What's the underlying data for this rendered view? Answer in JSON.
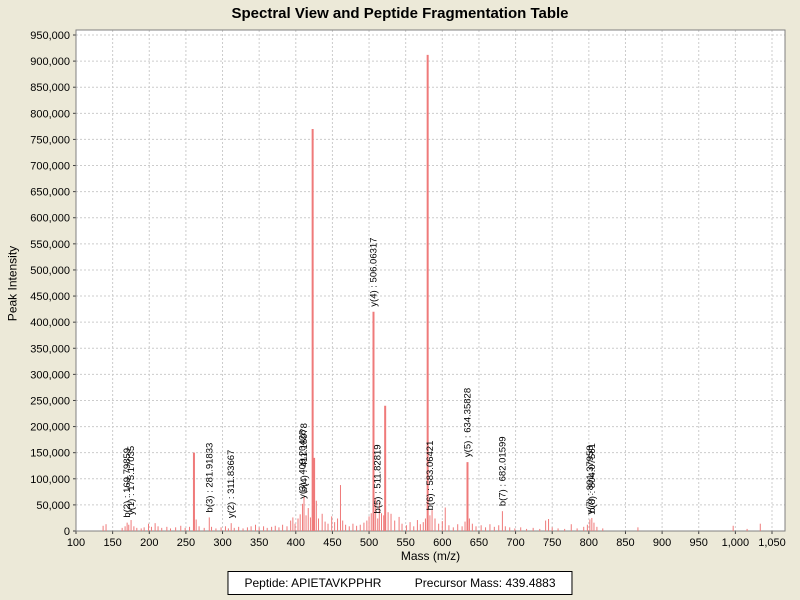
{
  "title": "Spectral View and Peptide Fragmentation Table",
  "status": {
    "peptide_text": "Peptide: APIETAVKPPHR",
    "precursor_text": "Precursor Mass: 439.4883"
  },
  "chart_data": {
    "type": "bar",
    "title": "Spectral View and Peptide Fragmentation Table",
    "xlabel": "Mass (m/z)",
    "ylabel": "Peak Intensity",
    "xlim": [
      100,
      1068
    ],
    "ylim": [
      0,
      960000
    ],
    "grid": true,
    "legend": false,
    "xticks": [
      100,
      150,
      200,
      250,
      300,
      350,
      400,
      450,
      500,
      550,
      600,
      650,
      700,
      750,
      800,
      850,
      900,
      950,
      1000,
      1050
    ],
    "yticks": [
      0,
      50000,
      100000,
      150000,
      200000,
      250000,
      300000,
      350000,
      400000,
      450000,
      500000,
      550000,
      600000,
      650000,
      700000,
      750000,
      800000,
      850000,
      900000,
      950000
    ],
    "colors": {
      "window_background": "#ece9d8",
      "plot_background": "#ffffff",
      "grid": "#cccccc",
      "border": "#808080",
      "peak": "#ef7a7a",
      "tick": "#404040",
      "label_text": "#000000"
    },
    "labeled_peaks": [
      {
        "label": "b(2) : 169.79859",
        "mz": 169.8,
        "intensity": 16000
      },
      {
        "label": "y(1) : 175.17035",
        "mz": 175.17,
        "intensity": 21000
      },
      {
        "label": "b(3) : 281.91833",
        "mz": 281.92,
        "intensity": 26000
      },
      {
        "label": "y(2) : 311.83667",
        "mz": 311.84,
        "intensity": 15000
      },
      {
        "label": "y(3) : 409.20428",
        "mz": 409.2,
        "intensity": 52000
      },
      {
        "label": "b(4) : 411.18978",
        "mz": 411.19,
        "intensity": 65000
      },
      {
        "label": "y(4) : 506.06317",
        "mz": 506.06,
        "intensity": 420000
      },
      {
        "label": "b(5) : 511.82819",
        "mz": 511.83,
        "intensity": 24000
      },
      {
        "label": "b(6) : 583.06421",
        "mz": 583.06,
        "intensity": 30000
      },
      {
        "label": "y(5) : 634.35828",
        "mz": 634.36,
        "intensity": 132000
      },
      {
        "label": "b(7) : 682.01599",
        "mz": 682.02,
        "intensity": 38000
      },
      {
        "label": "y(7) : 801.37958",
        "mz": 801.38,
        "intensity": 22000
      },
      {
        "label": "b(8) : 804.07561",
        "mz": 804.08,
        "intensity": 25000
      }
    ],
    "peaks": [
      [
        137,
        10000
      ],
      [
        141,
        13000
      ],
      [
        163,
        6000
      ],
      [
        167,
        9000
      ],
      [
        172,
        12000
      ],
      [
        179,
        9000
      ],
      [
        183,
        6000
      ],
      [
        189,
        5000
      ],
      [
        193,
        7000
      ],
      [
        199,
        14000
      ],
      [
        203,
        8000
      ],
      [
        208,
        15000
      ],
      [
        212,
        9000
      ],
      [
        217,
        6000
      ],
      [
        224,
        8000
      ],
      [
        229,
        5000
      ],
      [
        236,
        7000
      ],
      [
        243,
        10000
      ],
      [
        249,
        6000
      ],
      [
        255,
        8000
      ],
      [
        261,
        150000
      ],
      [
        264,
        22000
      ],
      [
        268,
        9000
      ],
      [
        275,
        6000
      ],
      [
        285,
        8000
      ],
      [
        291,
        5000
      ],
      [
        298,
        7000
      ],
      [
        304,
        9000
      ],
      [
        308,
        5000
      ],
      [
        316,
        6000
      ],
      [
        322,
        8000
      ],
      [
        328,
        5000
      ],
      [
        334,
        7000
      ],
      [
        339,
        9000
      ],
      [
        345,
        12000
      ],
      [
        350,
        7000
      ],
      [
        356,
        9000
      ],
      [
        361,
        6000
      ],
      [
        367,
        8000
      ],
      [
        372,
        10000
      ],
      [
        377,
        7000
      ],
      [
        382,
        12000
      ],
      [
        388,
        9000
      ],
      [
        393,
        20000
      ],
      [
        396,
        26000
      ],
      [
        399,
        14000
      ],
      [
        403,
        24000
      ],
      [
        406,
        32000
      ],
      [
        414,
        30000
      ],
      [
        417,
        44000
      ],
      [
        420,
        26000
      ],
      [
        423,
        770000
      ],
      [
        425,
        140000
      ],
      [
        428,
        58000
      ],
      [
        431,
        24000
      ],
      [
        436,
        33000
      ],
      [
        440,
        18000
      ],
      [
        444,
        14000
      ],
      [
        449,
        28000
      ],
      [
        453,
        17000
      ],
      [
        457,
        24000
      ],
      [
        461,
        88000
      ],
      [
        464,
        20000
      ],
      [
        468,
        12000
      ],
      [
        473,
        9000
      ],
      [
        478,
        14000
      ],
      [
        483,
        10000
      ],
      [
        488,
        12000
      ],
      [
        493,
        16000
      ],
      [
        497,
        20000
      ],
      [
        500,
        28000
      ],
      [
        503,
        34000
      ],
      [
        509,
        62000
      ],
      [
        514,
        55000
      ],
      [
        517,
        34000
      ],
      [
        520,
        30000
      ],
      [
        522,
        240000
      ],
      [
        526,
        36000
      ],
      [
        530,
        33000
      ],
      [
        535,
        20000
      ],
      [
        541,
        27000
      ],
      [
        545,
        14000
      ],
      [
        551,
        11000
      ],
      [
        556,
        17000
      ],
      [
        561,
        9000
      ],
      [
        566,
        21000
      ],
      [
        570,
        13000
      ],
      [
        574,
        17000
      ],
      [
        577,
        24000
      ],
      [
        580,
        912000
      ],
      [
        586,
        40000
      ],
      [
        590,
        24000
      ],
      [
        595,
        14000
      ],
      [
        600,
        19000
      ],
      [
        604,
        45000
      ],
      [
        609,
        11000
      ],
      [
        615,
        7000
      ],
      [
        621,
        13000
      ],
      [
        627,
        9000
      ],
      [
        631,
        18000
      ],
      [
        637,
        24000
      ],
      [
        641,
        14000
      ],
      [
        646,
        9000
      ],
      [
        653,
        11000
      ],
      [
        659,
        7000
      ],
      [
        665,
        13000
      ],
      [
        671,
        8000
      ],
      [
        677,
        11000
      ],
      [
        686,
        9000
      ],
      [
        692,
        7000
      ],
      [
        699,
        5000
      ],
      [
        707,
        7000
      ],
      [
        715,
        4000
      ],
      [
        724,
        6000
      ],
      [
        733,
        4000
      ],
      [
        741,
        20000
      ],
      [
        745,
        23000
      ],
      [
        750,
        7000
      ],
      [
        758,
        5000
      ],
      [
        767,
        4000
      ],
      [
        776,
        13000
      ],
      [
        784,
        5000
      ],
      [
        793,
        8000
      ],
      [
        798,
        12000
      ],
      [
        807,
        16000
      ],
      [
        811,
        8000
      ],
      [
        819,
        5000
      ],
      [
        867,
        7000
      ],
      [
        997,
        10000
      ],
      [
        1016,
        4000
      ],
      [
        1034,
        14000
      ]
    ]
  }
}
